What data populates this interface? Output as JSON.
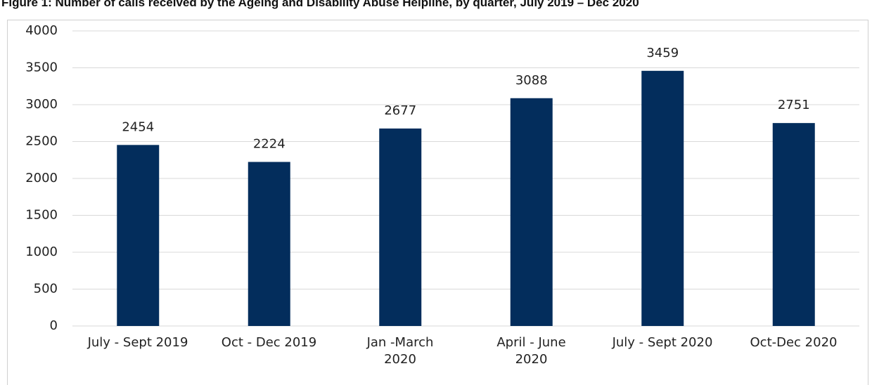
{
  "chart_data": {
    "type": "bar",
    "title": "Figure 1: Number of calls received by the Ageing and Disability Abuse Helpline, by quarter, July 2019 – Dec 2020",
    "categories": [
      "July - Sept 2019",
      "Oct - Dec 2019",
      "Jan -March\n2020",
      "April - June\n2020",
      "July - Sept 2020",
      "Oct-Dec 2020"
    ],
    "values": [
      2454,
      2224,
      2677,
      3088,
      3459,
      2751
    ],
    "color": "#032d5c",
    "ylim": [
      0,
      4000
    ],
    "yticks": [
      0,
      500,
      1000,
      1500,
      2000,
      2500,
      3000,
      3500,
      4000
    ],
    "grid": true
  }
}
